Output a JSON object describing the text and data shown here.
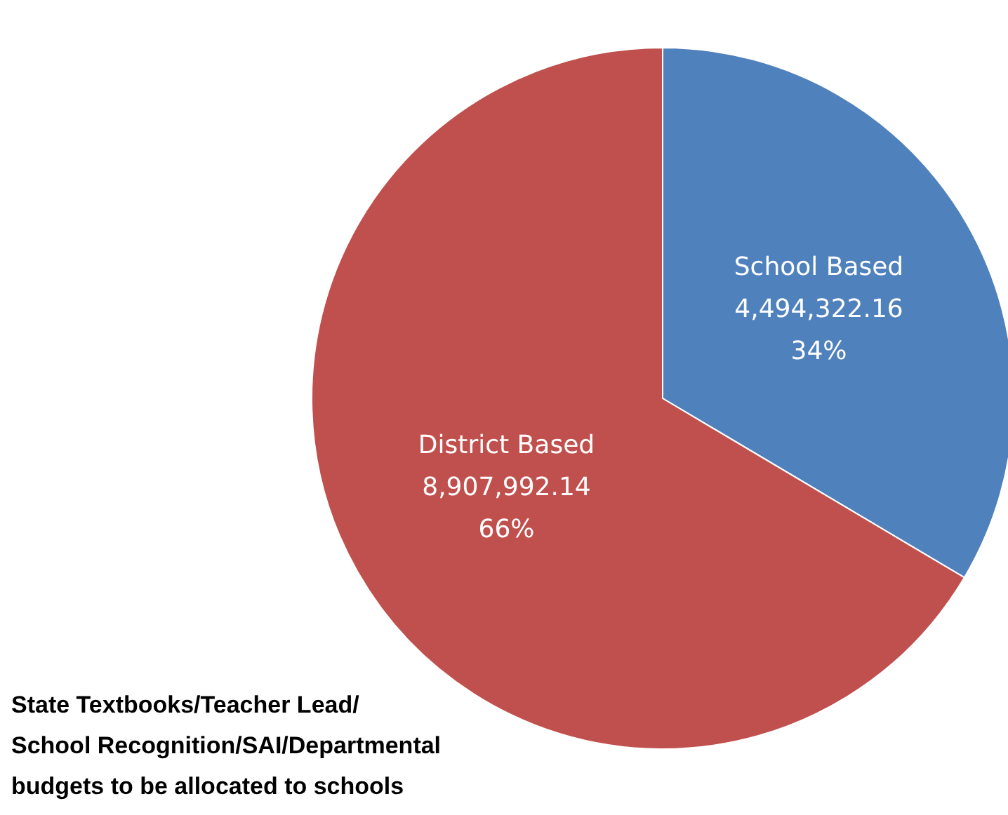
{
  "chart_data": {
    "type": "pie",
    "categories": [
      "School Based",
      "District Based"
    ],
    "values": [
      4494322.16,
      8907992.14
    ],
    "value_labels": [
      "4,494,322.16\n34%",
      "8,907,992.14\n66%"
    ],
    "colors": [
      "#4f81bd",
      "#c0504d"
    ],
    "annotations": [
      "State Textbooks/Teacher Lead/\nSchool Recognition/SAI/Departmental\nbudgets to be allocated to schools"
    ],
    "legend": false
  }
}
